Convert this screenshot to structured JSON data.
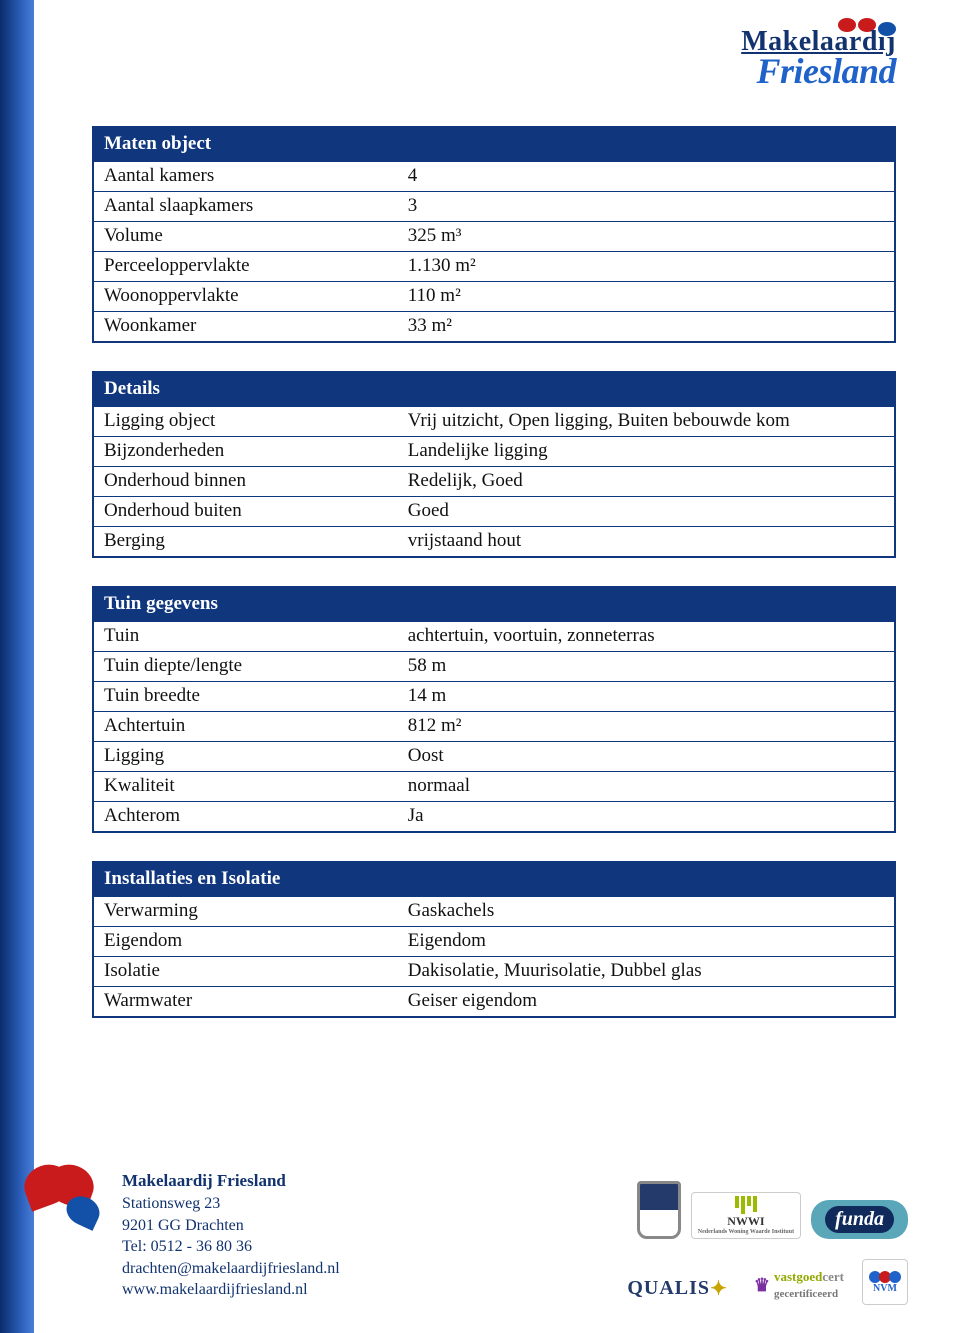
{
  "logo": {
    "line1": "Makelaardij",
    "line2": "Friesland",
    "dot_colors": [
      "#c91b1b",
      "#c91b1b",
      "#1351a8"
    ]
  },
  "colors": {
    "header_bg": "#10377e",
    "header_text": "#ffffff",
    "border": "#10377e",
    "body_text": "#111111",
    "stripe_from": "#0a2c6a",
    "stripe_to": "#4a7fd8",
    "brand_dark": "#12336f",
    "brand_blue": "#1f62c9"
  },
  "tables": [
    {
      "header": "Maten object",
      "rows": [
        [
          "Aantal kamers",
          "4"
        ],
        [
          "Aantal slaapkamers",
          "3"
        ],
        [
          "Volume",
          "325 m³"
        ],
        [
          "Perceeloppervlakte",
          "1.130 m²"
        ],
        [
          "Woonoppervlakte",
          "110 m²"
        ],
        [
          "Woonkamer",
          "33 m²"
        ]
      ]
    },
    {
      "header": "Details",
      "rows": [
        [
          "Ligging object",
          "Vrij uitzicht, Open ligging, Buiten bebouwde kom"
        ],
        [
          "Bijzonderheden",
          "Landelijke ligging"
        ],
        [
          "Onderhoud binnen",
          "Redelijk, Goed"
        ],
        [
          "Onderhoud buiten",
          "Goed"
        ],
        [
          "Berging",
          "vrijstaand hout"
        ]
      ]
    },
    {
      "header": "Tuin gegevens",
      "rows": [
        [
          "Tuin",
          "achtertuin, voortuin, zonneterras"
        ],
        [
          "Tuin diepte/lengte",
          "58 m"
        ],
        [
          "Tuin breedte",
          "14 m"
        ],
        [
          "Achtertuin",
          "812 m²"
        ],
        [
          "Ligging",
          "Oost"
        ],
        [
          "Kwaliteit",
          "normaal"
        ],
        [
          "Achterom",
          "Ja"
        ]
      ]
    },
    {
      "header": "Installaties en Isolatie",
      "rows": [
        [
          "Verwarming",
          "Gaskachels"
        ],
        [
          "Eigendom",
          "Eigendom"
        ],
        [
          "Isolatie",
          "Dakisolatie, Muurisolatie, Dubbel glas"
        ],
        [
          "Warmwater",
          "Geiser eigendom"
        ]
      ]
    }
  ],
  "footer": {
    "company": "Makelaardij Friesland",
    "address": "Stationsweg 23",
    "postal": "9201 GG Drachten",
    "tel": "Tel: 0512 - 36 80 36",
    "email": "drachten@makelaardijfriesland.nl",
    "web": "www.makelaardijfriesland.nl"
  },
  "badges": {
    "nwwi": "NWWI",
    "nwwi_sub": "Nederlands Woning Waarde Instituut",
    "funda": "funda",
    "qualis": "QUALIS",
    "vastgoed1": "vastgoed",
    "vastgoed2": "cert",
    "vastgoed3": "gecertificeerd",
    "nvm": "NVM"
  }
}
